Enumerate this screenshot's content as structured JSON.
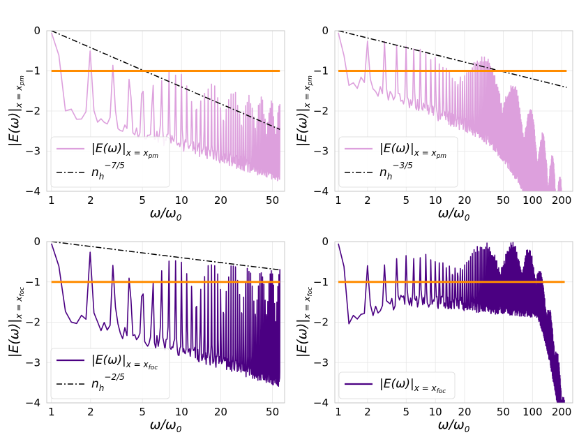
{
  "chart_data": [
    {
      "type": "line",
      "panel": "top-left",
      "xscale": "log",
      "xlim": [
        0.92,
        62
      ],
      "ylim": [
        -4,
        0
      ],
      "xticks": [
        1,
        2,
        5,
        10,
        20,
        50
      ],
      "xtick_labels": [
        "1",
        "2",
        "5",
        "10",
        "20",
        "50"
      ],
      "yticks": [
        0,
        -1,
        -2,
        -3,
        -4
      ],
      "ytick_labels": [
        "0",
        "−1",
        "−2",
        "−3",
        "−4"
      ],
      "xlabel": {
        "main": "ω/ω",
        "sub": "0"
      },
      "ylabel": {
        "main": "|E(ω)|",
        "sub": "x = x",
        "subsub": "pm"
      },
      "legend_position": "lower-left",
      "series": [
        {
          "name": "|E(ω)|x = xpm",
          "legend": {
            "main": "|E(ω)|",
            "sub": "x = x",
            "subsub": "pm"
          },
          "style": "signal",
          "color": "#dda0dd",
          "x_end": 57,
          "peak_exp": 1.05,
          "envelope": "power",
          "floor": -0.65,
          "valley": -1.85,
          "seed": 3
        },
        {
          "name": "n_h^-7/5",
          "legend": {
            "main": "n",
            "sub": "h",
            "sup": "−7/5"
          },
          "style": "dash-dot",
          "color": "#000000",
          "exponent": -1.4,
          "x_end": 57
        },
        {
          "name": "threshold",
          "style": "hline",
          "color": "#ff8c00",
          "y": -1,
          "x_end": 57
        }
      ]
    },
    {
      "type": "line",
      "panel": "top-right",
      "xscale": "log",
      "xlim": [
        0.92,
        260
      ],
      "ylim": [
        -4,
        0
      ],
      "xticks": [
        1,
        2,
        5,
        10,
        20,
        50,
        100,
        200
      ],
      "xtick_labels": [
        "1",
        "2",
        "5",
        "10",
        "20",
        "50",
        "100",
        "200"
      ],
      "yticks": [
        0,
        -1,
        -2,
        -3,
        -4
      ],
      "ytick_labels": [
        "0",
        "−1",
        "−2",
        "−3",
        "−4"
      ],
      "xlabel": {
        "main": "ω/ω",
        "sub": "0"
      },
      "ylabel": {
        "main": "|E(ω)|",
        "sub": "x = x",
        "subsub": "pm"
      },
      "legend_position": "lower-left",
      "series": [
        {
          "name": "|E(ω)|x = xpm",
          "legend": {
            "main": "|E(ω)|",
            "sub": "x = x",
            "subsub": "pm"
          },
          "style": "signal",
          "color": "#dda0dd",
          "x_end": 225,
          "envelope": "rolloff",
          "rolloff_start": 20,
          "seed": 7
        },
        {
          "name": "n_h^-3/5",
          "legend": {
            "main": "n",
            "sub": "h",
            "sup": "−3/5"
          },
          "style": "dash-dot",
          "color": "#000000",
          "exponent": -0.6,
          "x_end": 225
        },
        {
          "name": "threshold",
          "style": "hline",
          "color": "#ff8c00",
          "y": -1,
          "x_end": 225
        }
      ]
    },
    {
      "type": "line",
      "panel": "bottom-left",
      "xscale": "log",
      "xlim": [
        0.92,
        62
      ],
      "ylim": [
        -4,
        0
      ],
      "xticks": [
        1,
        2,
        5,
        10,
        20,
        50
      ],
      "xtick_labels": [
        "1",
        "2",
        "5",
        "10",
        "20",
        "50"
      ],
      "yticks": [
        0,
        -1,
        -2,
        -3,
        -4
      ],
      "ytick_labels": [
        "0",
        "−1",
        "−2",
        "−3",
        "−4"
      ],
      "xlabel": {
        "main": "ω/ω",
        "sub": "0"
      },
      "ylabel": {
        "main": "|E(ω)|",
        "sub": "x = x",
        "subsub": "foc"
      },
      "legend_position": "lower-left",
      "series": [
        {
          "name": "|E(ω)|x = xfoc",
          "legend": {
            "main": "|E(ω)|",
            "sub": "x = x",
            "subsub": "foc"
          },
          "style": "signal",
          "color": "#4b0082",
          "x_end": 57,
          "envelope": "power",
          "peak_exp": 0.4,
          "floor": -0.95,
          "valley": -1.7,
          "seed": 11
        },
        {
          "name": "n_h^-2/5",
          "legend": {
            "main": "n",
            "sub": "h",
            "sup": "−2/5"
          },
          "style": "dash-dot",
          "color": "#000000",
          "exponent": -0.4,
          "x_end": 57
        },
        {
          "name": "threshold",
          "style": "hline",
          "color": "#ff8c00",
          "y": -1,
          "x_end": 57
        }
      ]
    },
    {
      "type": "line",
      "panel": "bottom-right",
      "xscale": "log",
      "xlim": [
        0.92,
        260
      ],
      "ylim": [
        -4,
        0
      ],
      "xticks": [
        1,
        2,
        5,
        10,
        20,
        50,
        100,
        200
      ],
      "xtick_labels": [
        "1",
        "2",
        "5",
        "10",
        "20",
        "50",
        "100",
        "200"
      ],
      "yticks": [
        0,
        -1,
        -2,
        -3,
        -4
      ],
      "ytick_labels": [
        "0",
        "−1",
        "−2",
        "−3",
        "−4"
      ],
      "xlabel": {
        "main": "ω/ω",
        "sub": "0"
      },
      "ylabel": {
        "main": "|E(ω)|",
        "sub": "x = x",
        "subsub": "foc"
      },
      "legend_position": "lower-left",
      "series": [
        {
          "name": "|E(ω)|x = xfoc",
          "legend": {
            "main": "|E(ω)|",
            "sub": "x = x",
            "subsub": "foc"
          },
          "style": "signal",
          "color": "#4b0082",
          "x_end": 215,
          "envelope": "hump",
          "hump_center": 45,
          "seed": 19
        },
        {
          "name": "threshold",
          "style": "hline",
          "color": "#ff8c00",
          "y": -1,
          "x_end": 215
        }
      ]
    }
  ]
}
